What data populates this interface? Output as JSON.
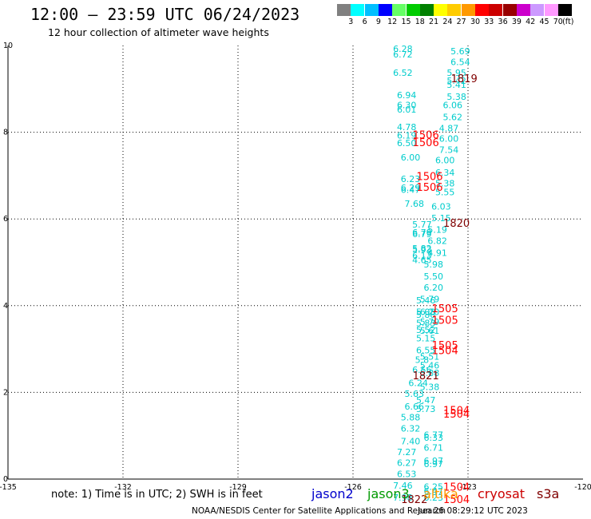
{
  "header": {
    "title": "12:00 – 23:59 UTC 06/24/2023",
    "subtitle": "12 hour collection of altimeter wave heights"
  },
  "colorbar": {
    "colors": [
      "#808080",
      "#00ffff",
      "#00bfff",
      "#0000ff",
      "#66ff66",
      "#00cc00",
      "#008000",
      "#ffff00",
      "#ffcc00",
      "#ff9900",
      "#ff0000",
      "#cc0000",
      "#990000",
      "#cc00cc",
      "#cc99ff",
      "#ff99ff",
      "#000000"
    ],
    "labels": [
      "3",
      "6",
      "9",
      "12",
      "15",
      "18",
      "21",
      "24",
      "27",
      "30",
      "33",
      "36",
      "39",
      "42",
      "45",
      "70"
    ],
    "unit": "(ft)"
  },
  "chart_data": {
    "type": "scatter",
    "title": "12:00 – 23:59 UTC 06/24/2023",
    "subtitle": "12 hour collection of altimeter wave heights",
    "xlabel": "",
    "ylabel": "",
    "xlim": [
      -135,
      -120
    ],
    "ylim": [
      0,
      10
    ],
    "x_ticks": [
      "-135",
      "-132",
      "-129",
      "-126",
      "-123",
      "-120"
    ],
    "y_ticks": [
      "0",
      "2",
      "4",
      "6",
      "8",
      "10"
    ],
    "grid": true,
    "swh_points": [
      {
        "x": -124.7,
        "y": 9.85,
        "label": "6.28"
      },
      {
        "x": -124.7,
        "y": 9.72,
        "label": "6.72"
      },
      {
        "x": -124.7,
        "y": 9.3,
        "label": "6.52"
      },
      {
        "x": -124.6,
        "y": 8.78,
        "label": "6.94"
      },
      {
        "x": -124.6,
        "y": 8.55,
        "label": "6.30"
      },
      {
        "x": -124.6,
        "y": 8.45,
        "label": "6.01"
      },
      {
        "x": -124.6,
        "y": 8.05,
        "label": "4.78"
      },
      {
        "x": -124.6,
        "y": 7.85,
        "label": "6.19"
      },
      {
        "x": -124.6,
        "y": 7.68,
        "label": "6.50"
      },
      {
        "x": -124.5,
        "y": 7.35,
        "label": "6.00"
      },
      {
        "x": -124.5,
        "y": 6.85,
        "label": "6.23"
      },
      {
        "x": -124.5,
        "y": 6.65,
        "label": "6.29"
      },
      {
        "x": -124.5,
        "y": 6.6,
        "label": "6.47"
      },
      {
        "x": -124.4,
        "y": 6.28,
        "label": "7.68"
      },
      {
        "x": -124.2,
        "y": 5.8,
        "label": "5.77"
      },
      {
        "x": -124.2,
        "y": 5.62,
        "label": "6.79"
      },
      {
        "x": -124.2,
        "y": 5.58,
        "label": "6.79"
      },
      {
        "x": -124.2,
        "y": 5.25,
        "label": "5.82"
      },
      {
        "x": -124.2,
        "y": 5.22,
        "label": "5.93"
      },
      {
        "x": -124.2,
        "y": 5.08,
        "label": "6.13"
      },
      {
        "x": -124.2,
        "y": 4.98,
        "label": "4.65"
      },
      {
        "x": -124.1,
        "y": 4.05,
        "label": "5.46"
      },
      {
        "x": -124.1,
        "y": 3.78,
        "label": "5.08"
      },
      {
        "x": -124.1,
        "y": 3.72,
        "label": "5.88"
      },
      {
        "x": -124.1,
        "y": 3.53,
        "label": "5.83"
      },
      {
        "x": -124.1,
        "y": 3.37,
        "label": "5.52"
      },
      {
        "x": -124.1,
        "y": 3.18,
        "label": "5.15"
      },
      {
        "x": -124.1,
        "y": 2.9,
        "label": "6.55"
      },
      {
        "x": -124.2,
        "y": 2.68,
        "label": "5.8"
      },
      {
        "x": -124.2,
        "y": 2.45,
        "label": "6.56"
      },
      {
        "x": -124.3,
        "y": 2.15,
        "label": "6.24"
      },
      {
        "x": -124.4,
        "y": 1.9,
        "label": "5.63"
      },
      {
        "x": -124.4,
        "y": 1.6,
        "label": "6.66"
      },
      {
        "x": -124.5,
        "y": 1.35,
        "label": "5.88"
      },
      {
        "x": -124.5,
        "y": 1.1,
        "label": "6.32"
      },
      {
        "x": -124.5,
        "y": 0.8,
        "label": "7.40"
      },
      {
        "x": -124.6,
        "y": 0.55,
        "label": "7.27"
      },
      {
        "x": -124.6,
        "y": 0.3,
        "label": "6.27"
      },
      {
        "x": -124.6,
        "y": 0.05,
        "label": "6.53"
      },
      {
        "x": -124.7,
        "y": -0.22,
        "label": "7.46"
      },
      {
        "x": -124.7,
        "y": -0.5,
        "label": "7.98"
      },
      {
        "x": -123.2,
        "y": 9.8,
        "label": "5.69"
      },
      {
        "x": -123.2,
        "y": 9.55,
        "label": "6.54"
      },
      {
        "x": -123.3,
        "y": 9.3,
        "label": "5.95"
      },
      {
        "x": -123.3,
        "y": 9.12,
        "label": "5.42"
      },
      {
        "x": -123.3,
        "y": 9.02,
        "label": "5.41"
      },
      {
        "x": -123.3,
        "y": 8.75,
        "label": "5.38"
      },
      {
        "x": -123.4,
        "y": 8.55,
        "label": "6.06"
      },
      {
        "x": -123.4,
        "y": 8.28,
        "label": "5.62"
      },
      {
        "x": -123.5,
        "y": 8.02,
        "label": "4.87"
      },
      {
        "x": -123.5,
        "y": 7.78,
        "label": "6.00"
      },
      {
        "x": -123.5,
        "y": 7.52,
        "label": "7.54"
      },
      {
        "x": -123.6,
        "y": 7.28,
        "label": "6.00"
      },
      {
        "x": -123.6,
        "y": 7.0,
        "label": "6.34"
      },
      {
        "x": -123.6,
        "y": 6.75,
        "label": "5.38"
      },
      {
        "x": -123.6,
        "y": 6.55,
        "label": "5.55"
      },
      {
        "x": -123.7,
        "y": 6.22,
        "label": "6.03"
      },
      {
        "x": -123.7,
        "y": 5.95,
        "label": "5.15"
      },
      {
        "x": -123.8,
        "y": 5.68,
        "label": "5.19"
      },
      {
        "x": -123.8,
        "y": 5.42,
        "label": "6.82"
      },
      {
        "x": -123.8,
        "y": 5.15,
        "label": "4.91"
      },
      {
        "x": -123.9,
        "y": 4.88,
        "label": "5.98"
      },
      {
        "x": -123.9,
        "y": 4.6,
        "label": "5.50"
      },
      {
        "x": -123.9,
        "y": 4.35,
        "label": "6.20"
      },
      {
        "x": -124.0,
        "y": 4.08,
        "label": "5.79"
      },
      {
        "x": -124.0,
        "y": 3.78,
        "label": "6.20"
      },
      {
        "x": -124.0,
        "y": 3.55,
        "label": "5.79"
      },
      {
        "x": -124.0,
        "y": 3.35,
        "label": "5.61"
      },
      {
        "x": -124.0,
        "y": 2.75,
        "label": "5.51"
      },
      {
        "x": -124.0,
        "y": 2.55,
        "label": "5.46"
      },
      {
        "x": -124.0,
        "y": 2.38,
        "label": "5.88"
      },
      {
        "x": -124.0,
        "y": 2.05,
        "label": "5.38"
      },
      {
        "x": -124.1,
        "y": 1.75,
        "label": "5.47"
      },
      {
        "x": -124.1,
        "y": 1.55,
        "label": "5.73"
      },
      {
        "x": -123.9,
        "y": 0.95,
        "label": "6.77"
      },
      {
        "x": -123.9,
        "y": 0.88,
        "label": "6.33"
      },
      {
        "x": -123.9,
        "y": 0.65,
        "label": "6.71"
      },
      {
        "x": -123.9,
        "y": 0.35,
        "label": "6.97"
      },
      {
        "x": -123.9,
        "y": 0.28,
        "label": "6.97"
      },
      {
        "x": -123.9,
        "y": -0.25,
        "label": "6.25"
      },
      {
        "x": -123.9,
        "y": -0.35,
        "label": "6.47"
      },
      {
        "x": -123.9,
        "y": -0.5,
        "label": "6.23"
      }
    ],
    "time_labels": [
      {
        "x": -123.1,
        "y": 9.15,
        "label": "1819",
        "color": "#800000"
      },
      {
        "x": -124.1,
        "y": 7.85,
        "label": "1506",
        "color": "#ff0000"
      },
      {
        "x": -124.1,
        "y": 7.68,
        "label": "1506",
        "color": "#ff0000"
      },
      {
        "x": -124.0,
        "y": 6.9,
        "label": "1506",
        "color": "#ff0000"
      },
      {
        "x": -124.0,
        "y": 6.65,
        "label": "1506",
        "color": "#ff0000"
      },
      {
        "x": -123.3,
        "y": 5.82,
        "label": "1820",
        "color": "#800000"
      },
      {
        "x": -123.6,
        "y": 3.85,
        "label": "1505",
        "color": "#ff0000"
      },
      {
        "x": -123.6,
        "y": 3.58,
        "label": "1505",
        "color": "#ff0000"
      },
      {
        "x": -123.6,
        "y": 3.0,
        "label": "1505",
        "color": "#ff0000"
      },
      {
        "x": -123.6,
        "y": 2.88,
        "label": "1504",
        "color": "#ff0000"
      },
      {
        "x": -124.1,
        "y": 2.3,
        "label": "1821",
        "color": "#800000"
      },
      {
        "x": -123.3,
        "y": 1.5,
        "label": "1504",
        "color": "#ff0000"
      },
      {
        "x": -123.3,
        "y": 1.42,
        "label": "1504",
        "color": "#ff0000"
      },
      {
        "x": -123.3,
        "y": -0.27,
        "label": "1504",
        "color": "#ff0000"
      },
      {
        "x": -123.3,
        "y": -0.55,
        "label": "1504",
        "color": "#ff0000"
      },
      {
        "x": -124.4,
        "y": -0.55,
        "label": "1822",
        "color": "#800000"
      }
    ]
  },
  "footer": {
    "note": "note: 1) Time is in UTC; 2) SWH is in feet",
    "legend": [
      {
        "name": "jason2",
        "color": "#0000cc"
      },
      {
        "name": "jason3",
        "color": "#009900"
      },
      {
        "name": "altika",
        "color": "#ff9900"
      },
      {
        "name": "cryosat",
        "color": "#cc0000"
      },
      {
        "name": "s3a",
        "color": "#800000"
      }
    ],
    "credit_left": "NOAA/NESDIS Center for Satellite Applications and Research",
    "credit_right": "Jun 26 08:29:12 UTC 2023"
  }
}
